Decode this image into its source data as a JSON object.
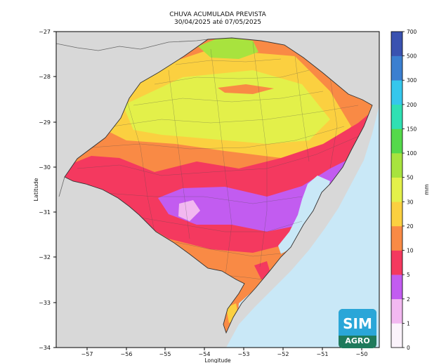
{
  "title": {
    "line1": "CHUVA ACUMULADA PREVISTA",
    "line2": "30/04/2025 até 07/05/2025"
  },
  "axes": {
    "xlabel": "Longitude",
    "ylabel": "Latitude",
    "x_ticks": [
      "−57",
      "−56",
      "−55",
      "−54",
      "−53",
      "−52",
      "−51",
      "−50"
    ],
    "y_ticks": [
      "−27",
      "−28",
      "−29",
      "−30",
      "−31",
      "−32",
      "−33",
      "−34"
    ]
  },
  "colorbar": {
    "unit": "mm",
    "labels": [
      "0",
      "1",
      "2",
      "5",
      "10",
      "20",
      "30",
      "50",
      "100",
      "150",
      "200",
      "300",
      "500",
      "700"
    ],
    "colors": [
      "#fbf3fb",
      "#f2b8f0",
      "#c25cf0",
      "#f4395f",
      "#f98a45",
      "#fbd040",
      "#e3f04a",
      "#a8e33e",
      "#55d94b",
      "#2fe0b3",
      "#35c7ec",
      "#3b7fd0",
      "#3a52b0"
    ]
  },
  "legend_colors": {
    "land": "#d8d8d8",
    "ocean": "#c9e8f7",
    "border": "#555555"
  },
  "logo": {
    "line1": "SIM",
    "line2": "AGRO"
  }
}
